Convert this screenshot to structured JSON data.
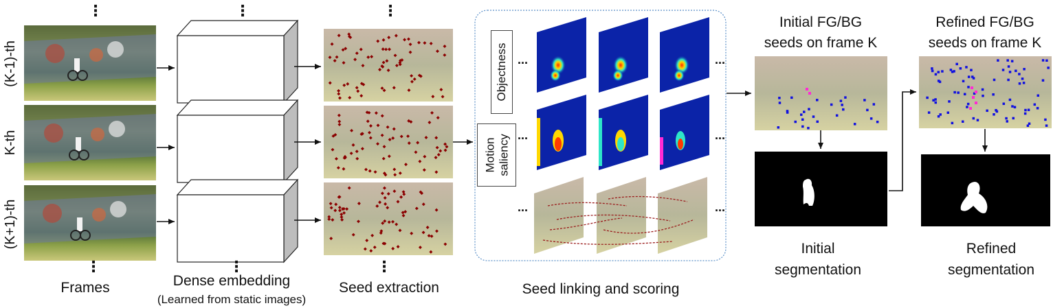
{
  "rows": [
    {
      "label": "(K-1)-th"
    },
    {
      "label": "K-th"
    },
    {
      "label": "(K+1)-th"
    }
  ],
  "ellipsis_vertical": "⋮",
  "ellipsis_horizontal": "...",
  "stages": {
    "frames": "Frames",
    "embedding": "Dense embedding",
    "embedding_note": "(Learned from static images)",
    "seed_extraction": "Seed extraction",
    "linking": "Seed linking and scoring"
  },
  "panel_labels": {
    "objectness": "Objectness",
    "motion_line1": "Motion",
    "motion_line2": "saliency"
  },
  "initial": {
    "title_line1": "Initial FG/BG",
    "title_line2": "seeds on frame K",
    "result_line1": "Initial",
    "result_line2": "segmentation"
  },
  "refined": {
    "title_line1": "Refined FG/BG",
    "title_line2": "seeds on frame K",
    "result_line1": "Refined",
    "result_line2": "segmentation"
  },
  "colors": {
    "seed_red": "#8b0000",
    "seed_blue": "#1010e0",
    "seed_magenta": "#ff2ad4",
    "heatmap_bg": "#0b23a8",
    "panel_border": "#5a8fc8",
    "mask_bg": "#000000"
  }
}
